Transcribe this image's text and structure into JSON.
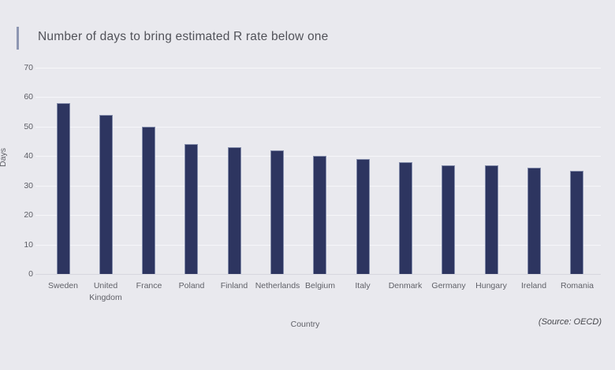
{
  "title": "Number of days to bring estimated R rate below one",
  "source_note": "(Source: OECD)",
  "colors": {
    "background": "#e9e9ee",
    "bar_fill": "#2d3560",
    "bar_edge": "#949cb9",
    "accent_bar": "#8d96b2",
    "gridline": "#f6f6f9",
    "zero_line": "#d6d6de",
    "title_text": "#515259",
    "tick_text": "#5c5d64"
  },
  "chart_data": {
    "type": "bar",
    "title": "Number of days to bring estimated R rate below one",
    "xlabel": "Country",
    "ylabel": "Days",
    "categories": [
      "Sweden",
      "United Kingdom",
      "France",
      "Poland",
      "Finland",
      "Netherlands",
      "Belgium",
      "Italy",
      "Denmark",
      "Germany",
      "Hungary",
      "Ireland",
      "Romania"
    ],
    "values": [
      58,
      54,
      50,
      44,
      43,
      42,
      40,
      39,
      38,
      37,
      37,
      36,
      35
    ],
    "ylim": [
      0,
      70
    ],
    "ytick_step": 10,
    "yticks": [
      0,
      10,
      20,
      30,
      40,
      50,
      60,
      70
    ],
    "grid": true,
    "legend": "none",
    "source": "(Source: OECD)"
  }
}
